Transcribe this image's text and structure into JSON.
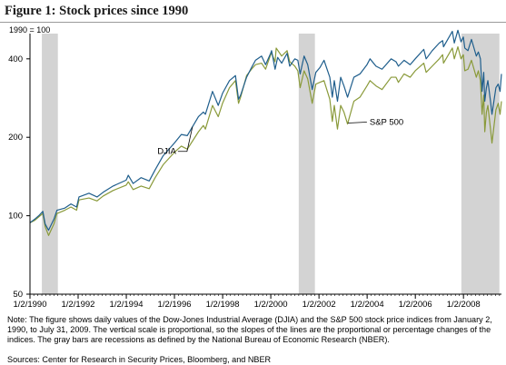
{
  "header": {
    "title": "Figure 1: Stock prices since 1990",
    "unit_label": "1990 = 100"
  },
  "footer": {
    "note": "Note: The figure shows daily values of the Dow-Jones Industrial Average (DJIA) and the S&P 500 stock price indices from January 2, 1990, to July 31, 2009. The vertical scale is proportional, so the slopes of the lines are the proportional or percentage changes of the indices. The gray bars are recessions as defined by the National Bureau of Economic Research (NBER).",
    "sources": "Sources: Center for Research in Security Prices, Bloomberg, and NBER"
  },
  "chart_data": {
    "type": "line",
    "scale": "log",
    "ylim": [
      50,
      500
    ],
    "yticks": [
      50,
      100,
      200,
      400
    ],
    "xlim": [
      "1990-01-02",
      "2009-07-31"
    ],
    "xticks": [
      {
        "date": "1990-01-02",
        "label": "1/2/1990"
      },
      {
        "date": "1992-01-02",
        "label": "1/2/1992"
      },
      {
        "date": "1994-01-02",
        "label": "1/2/1994"
      },
      {
        "date": "1996-01-02",
        "label": "1/2/1996"
      },
      {
        "date": "1998-01-02",
        "label": "1/2/1998"
      },
      {
        "date": "2000-01-02",
        "label": "1/2/2000"
      },
      {
        "date": "2002-01-02",
        "label": "1/2/2002"
      },
      {
        "date": "2004-01-02",
        "label": "1/2/2004"
      },
      {
        "date": "2006-01-02",
        "label": "1/2/2006"
      },
      {
        "date": "2008-01-02",
        "label": "1/2/2008"
      }
    ],
    "recessions": [
      {
        "start": "1990-07-01",
        "end": "1991-03-01"
      },
      {
        "start": "2001-03-01",
        "end": "2001-11-01"
      },
      {
        "start": "2007-12-01",
        "end": "2009-06-30"
      }
    ],
    "series": [
      {
        "name": "DJIA",
        "color": "#1f5e8c",
        "points": [
          [
            "1990-01-02",
            94
          ],
          [
            "1990-03-15",
            97
          ],
          [
            "1990-05-15",
            100
          ],
          [
            "1990-07-16",
            104
          ],
          [
            "1990-08-20",
            93
          ],
          [
            "1990-10-11",
            88
          ],
          [
            "1990-12-31",
            97
          ],
          [
            "1991-02-15",
            105
          ],
          [
            "1991-06-15",
            107
          ],
          [
            "1991-09-15",
            111
          ],
          [
            "1991-12-10",
            108
          ],
          [
            "1992-01-15",
            118
          ],
          [
            "1992-06-15",
            122
          ],
          [
            "1992-10-15",
            118
          ],
          [
            "1993-01-15",
            123
          ],
          [
            "1993-06-15",
            130
          ],
          [
            "1993-12-31",
            137
          ],
          [
            "1994-02-01",
            143
          ],
          [
            "1994-04-15",
            133
          ],
          [
            "1994-08-15",
            140
          ],
          [
            "1994-12-15",
            136
          ],
          [
            "1995-03-15",
            150
          ],
          [
            "1995-07-15",
            170
          ],
          [
            "1995-12-31",
            190
          ],
          [
            "1996-04-15",
            205
          ],
          [
            "1996-07-15",
            203
          ],
          [
            "1996-12-31",
            240
          ],
          [
            "1997-03-15",
            250
          ],
          [
            "1997-04-15",
            245
          ],
          [
            "1997-08-01",
            300
          ],
          [
            "1997-10-27",
            265
          ],
          [
            "1997-12-31",
            295
          ],
          [
            "1998-04-15",
            330
          ],
          [
            "1998-07-15",
            345
          ],
          [
            "1998-08-31",
            280
          ],
          [
            "1998-10-01",
            290
          ],
          [
            "1998-12-31",
            340
          ],
          [
            "1999-03-15",
            370
          ],
          [
            "1999-05-15",
            395
          ],
          [
            "1999-08-15",
            410
          ],
          [
            "1999-10-15",
            380
          ],
          [
            "1999-12-31",
            420
          ],
          [
            "2000-01-14",
            430
          ],
          [
            "2000-03-07",
            365
          ],
          [
            "2000-04-15",
            405
          ],
          [
            "2000-06-15",
            385
          ],
          [
            "2000-09-05",
            420
          ],
          [
            "2000-10-15",
            375
          ],
          [
            "2000-12-31",
            400
          ],
          [
            "2001-02-15",
            395
          ],
          [
            "2001-03-22",
            350
          ],
          [
            "2001-05-21",
            410
          ],
          [
            "2001-07-15",
            380
          ],
          [
            "2001-09-21",
            305
          ],
          [
            "2001-11-15",
            355
          ],
          [
            "2002-01-15",
            370
          ],
          [
            "2002-03-19",
            395
          ],
          [
            "2002-06-15",
            340
          ],
          [
            "2002-07-23",
            285
          ],
          [
            "2002-08-22",
            330
          ],
          [
            "2002-10-09",
            275
          ],
          [
            "2002-11-27",
            340
          ],
          [
            "2003-01-15",
            315
          ],
          [
            "2003-03-11",
            285
          ],
          [
            "2003-06-15",
            340
          ],
          [
            "2003-09-15",
            350
          ],
          [
            "2003-12-31",
            380
          ],
          [
            "2004-02-15",
            400
          ],
          [
            "2004-05-15",
            375
          ],
          [
            "2004-08-15",
            365
          ],
          [
            "2004-12-31",
            400
          ],
          [
            "2005-03-15",
            390
          ],
          [
            "2005-04-20",
            375
          ],
          [
            "2005-07-15",
            395
          ],
          [
            "2005-10-15",
            380
          ],
          [
            "2005-12-31",
            400
          ],
          [
            "2006-05-10",
            435
          ],
          [
            "2006-06-15",
            400
          ],
          [
            "2006-09-15",
            430
          ],
          [
            "2006-12-31",
            460
          ],
          [
            "2007-02-20",
            470
          ],
          [
            "2007-03-05",
            445
          ],
          [
            "2007-07-17",
            510
          ],
          [
            "2007-08-16",
            460
          ],
          [
            "2007-10-09",
            515
          ],
          [
            "2007-11-26",
            465
          ],
          [
            "2007-12-31",
            485
          ],
          [
            "2008-01-22",
            440
          ],
          [
            "2008-03-10",
            430
          ],
          [
            "2008-05-02",
            475
          ],
          [
            "2008-07-15",
            410
          ],
          [
            "2008-08-15",
            425
          ],
          [
            "2008-09-15",
            400
          ],
          [
            "2008-10-10",
            300
          ],
          [
            "2008-11-04",
            355
          ],
          [
            "2008-11-20",
            275
          ],
          [
            "2008-12-15",
            310
          ],
          [
            "2009-01-06",
            330
          ],
          [
            "2009-02-15",
            275
          ],
          [
            "2009-03-09",
            245
          ],
          [
            "2009-05-08",
            310
          ],
          [
            "2009-06-12",
            320
          ],
          [
            "2009-07-10",
            300
          ],
          [
            "2009-07-31",
            350
          ]
        ]
      },
      {
        "name": "S&P 500",
        "color": "#8a9a3a",
        "points": [
          [
            "1990-01-02",
            94
          ],
          [
            "1990-03-15",
            96
          ],
          [
            "1990-05-15",
            99
          ],
          [
            "1990-07-16",
            102
          ],
          [
            "1990-08-20",
            91
          ],
          [
            "1990-10-11",
            84
          ],
          [
            "1990-12-31",
            93
          ],
          [
            "1991-02-15",
            102
          ],
          [
            "1991-06-15",
            105
          ],
          [
            "1991-09-15",
            108
          ],
          [
            "1991-12-10",
            105
          ],
          [
            "1992-01-15",
            115
          ],
          [
            "1992-06-15",
            117
          ],
          [
            "1992-10-15",
            114
          ],
          [
            "1993-01-15",
            119
          ],
          [
            "1993-06-15",
            125
          ],
          [
            "1993-12-31",
            131
          ],
          [
            "1994-02-01",
            135
          ],
          [
            "1994-04-15",
            126
          ],
          [
            "1994-08-15",
            130
          ],
          [
            "1994-12-15",
            127
          ],
          [
            "1995-03-15",
            140
          ],
          [
            "1995-07-15",
            157
          ],
          [
            "1995-12-31",
            175
          ],
          [
            "1996-04-15",
            185
          ],
          [
            "1996-07-15",
            180
          ],
          [
            "1996-12-31",
            210
          ],
          [
            "1997-03-15",
            222
          ],
          [
            "1997-04-15",
            215
          ],
          [
            "1997-08-01",
            265
          ],
          [
            "1997-10-27",
            240
          ],
          [
            "1997-12-31",
            270
          ],
          [
            "1998-04-15",
            310
          ],
          [
            "1998-07-15",
            330
          ],
          [
            "1998-08-31",
            270
          ],
          [
            "1998-10-01",
            285
          ],
          [
            "1998-12-31",
            345
          ],
          [
            "1999-03-15",
            365
          ],
          [
            "1999-05-15",
            380
          ],
          [
            "1999-08-15",
            385
          ],
          [
            "1999-10-15",
            365
          ],
          [
            "1999-12-31",
            415
          ],
          [
            "2000-01-14",
            420
          ],
          [
            "2000-03-07",
            390
          ],
          [
            "2000-03-24",
            440
          ],
          [
            "2000-06-15",
            410
          ],
          [
            "2000-09-05",
            430
          ],
          [
            "2000-10-15",
            390
          ],
          [
            "2000-12-31",
            375
          ],
          [
            "2001-02-15",
            360
          ],
          [
            "2001-03-22",
            310
          ],
          [
            "2001-05-21",
            360
          ],
          [
            "2001-07-15",
            335
          ],
          [
            "2001-09-21",
            270
          ],
          [
            "2001-11-15",
            320
          ],
          [
            "2002-01-15",
            325
          ],
          [
            "2002-03-19",
            330
          ],
          [
            "2002-06-15",
            280
          ],
          [
            "2002-07-23",
            230
          ],
          [
            "2002-08-22",
            265
          ],
          [
            "2002-10-09",
            215
          ],
          [
            "2002-11-27",
            265
          ],
          [
            "2003-01-15",
            250
          ],
          [
            "2003-03-11",
            225
          ],
          [
            "2003-06-15",
            275
          ],
          [
            "2003-09-15",
            285
          ],
          [
            "2003-12-31",
            315
          ],
          [
            "2004-02-15",
            330
          ],
          [
            "2004-05-15",
            315
          ],
          [
            "2004-08-15",
            305
          ],
          [
            "2004-12-31",
            340
          ],
          [
            "2005-03-15",
            340
          ],
          [
            "2005-04-20",
            325
          ],
          [
            "2005-07-15",
            350
          ],
          [
            "2005-10-15",
            340
          ],
          [
            "2005-12-31",
            360
          ],
          [
            "2006-05-10",
            385
          ],
          [
            "2006-06-15",
            355
          ],
          [
            "2006-09-15",
            375
          ],
          [
            "2006-12-31",
            400
          ],
          [
            "2007-02-20",
            415
          ],
          [
            "2007-03-05",
            385
          ],
          [
            "2007-07-17",
            440
          ],
          [
            "2007-08-16",
            400
          ],
          [
            "2007-10-09",
            445
          ],
          [
            "2007-11-26",
            400
          ],
          [
            "2007-12-31",
            415
          ],
          [
            "2008-01-22",
            360
          ],
          [
            "2008-03-10",
            365
          ],
          [
            "2008-05-02",
            395
          ],
          [
            "2008-07-15",
            340
          ],
          [
            "2008-08-15",
            360
          ],
          [
            "2008-09-15",
            330
          ],
          [
            "2008-10-10",
            245
          ],
          [
            "2008-11-04",
            290
          ],
          [
            "2008-11-20",
            210
          ],
          [
            "2008-12-15",
            250
          ],
          [
            "2009-01-06",
            265
          ],
          [
            "2009-02-15",
            215
          ],
          [
            "2009-03-09",
            190
          ],
          [
            "2009-05-08",
            255
          ],
          [
            "2009-06-12",
            270
          ],
          [
            "2009-07-10",
            245
          ],
          [
            "2009-07-31",
            275
          ]
        ]
      }
    ],
    "annotations": [
      {
        "text": "DJIA",
        "series": "DJIA",
        "at": "1996-10-01"
      },
      {
        "text": "S&P 500",
        "series": "S&P 500",
        "at": "2003-03-15"
      }
    ]
  }
}
